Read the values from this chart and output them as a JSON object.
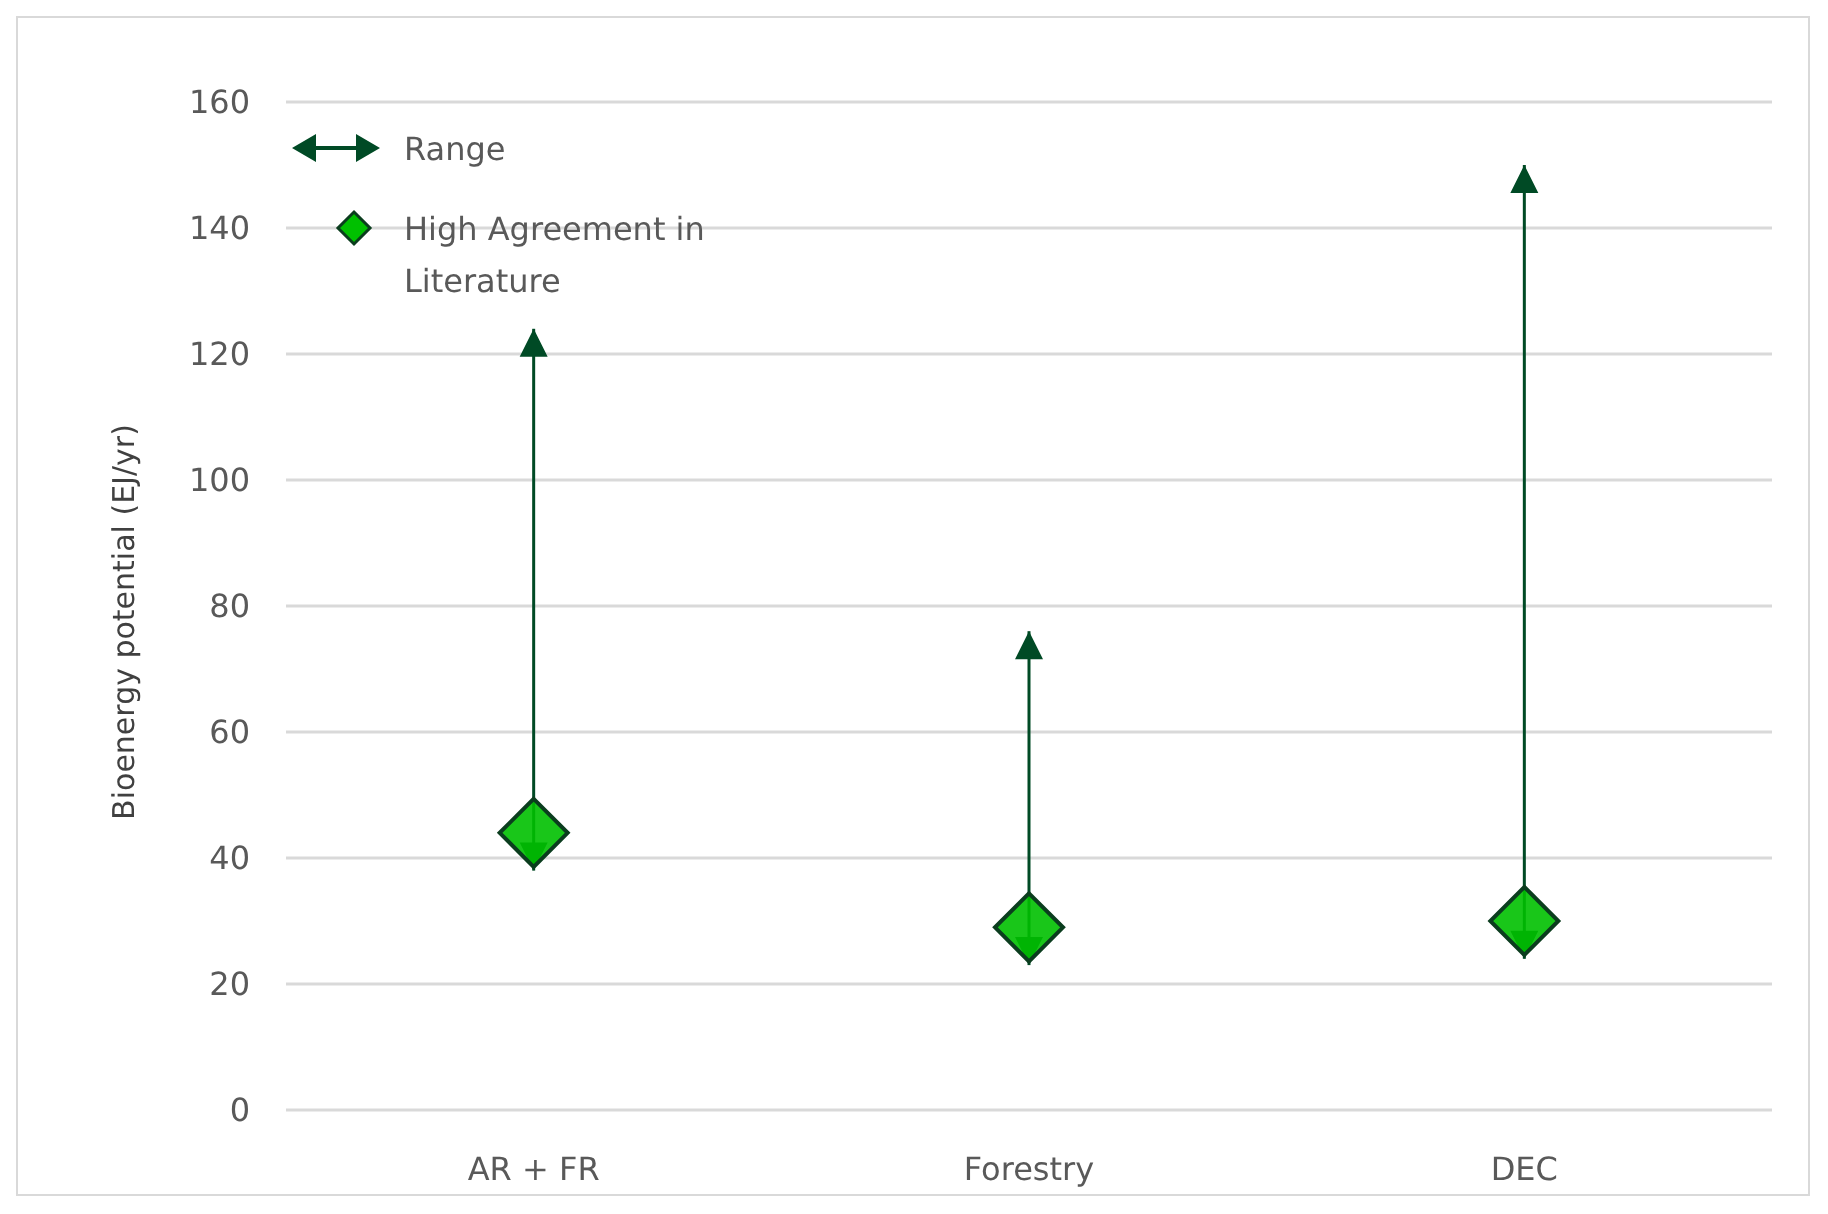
{
  "chart_data": {
    "type": "bar",
    "ylabel": "Bioenergy potential (EJ/yr)",
    "categories": [
      "AR + FR",
      "Forestry",
      "DEC"
    ],
    "series": [
      {
        "name": "Range",
        "color": "#004a25",
        "base": [
          38,
          23,
          24
        ],
        "values": [
          86,
          53,
          126
        ]
      },
      {
        "name": "High Agreement in Literature",
        "type": "scatter",
        "color": "#00c000",
        "marker": "diamond",
        "values": [
          44,
          29,
          30
        ]
      }
    ],
    "ylim": [
      0,
      160
    ],
    "yticks": [
      0,
      20,
      40,
      60,
      80,
      100,
      120,
      140,
      160
    ],
    "grid": "y",
    "legend": "top left"
  }
}
